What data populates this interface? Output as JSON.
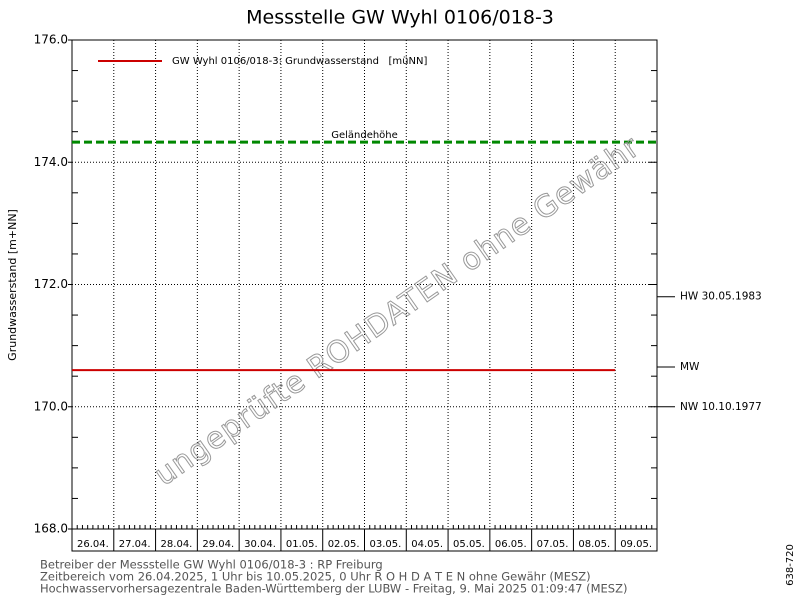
{
  "chart_data": {
    "type": "line",
    "title": "Messstelle GW Wyhl 0106/018-3",
    "ylabel": "Grundwasserstand [m+NN]",
    "categories": [
      "26.04.",
      "27.04.",
      "28.04.",
      "29.04.",
      "30.04.",
      "01.05.",
      "02.05.",
      "03.05.",
      "04.05.",
      "05.05.",
      "06.05.",
      "07.05.",
      "08.05.",
      "09.05."
    ],
    "series": [
      {
        "name": "GW Wyhl 0106/018-3: Grundwasserstand   [müNN]",
        "color": "#cc0000",
        "values": [
          170.6,
          170.6,
          170.6,
          170.6,
          170.6,
          170.6,
          170.6,
          170.6,
          170.6,
          170.6,
          170.6,
          170.6,
          170.6,
          170.6
        ]
      }
    ],
    "reference_line": {
      "label": "Geländehöhe",
      "value": 174.33,
      "color": "#008800"
    },
    "markers": [
      {
        "label": "HW 30.05.1983",
        "value": 171.8
      },
      {
        "label": "MW",
        "value": 170.65
      },
      {
        "label": "NW 10.10.1977",
        "value": 170.0
      }
    ],
    "ylim": [
      168.0,
      176.0
    ],
    "yticks": [
      {
        "value": 168,
        "label": "168.0"
      },
      {
        "value": 170,
        "label": "170.0"
      },
      {
        "value": 172,
        "label": "172.0"
      },
      {
        "value": 174,
        "label": "174.0"
      },
      {
        "value": 176,
        "label": "176.0"
      }
    ],
    "grid": true,
    "watermark": "ungeprüfte ROHDATEN ohne Gewähr",
    "footer": [
      "Betreiber der Messstelle GW Wyhl 0106/018-3 : RP Freiburg",
      "Zeitbereich vom 26.04.2025, 1 Uhr bis 10.05.2025, 0 Uhr   R O H D A T E N ohne Gewähr (MESZ)",
      "Hochwasservorhersagezentrale Baden-Württemberg der LUBW - Freitag, 9. Mai 2025 01:09:47 (MESZ)"
    ],
    "side_label": "638-720"
  }
}
